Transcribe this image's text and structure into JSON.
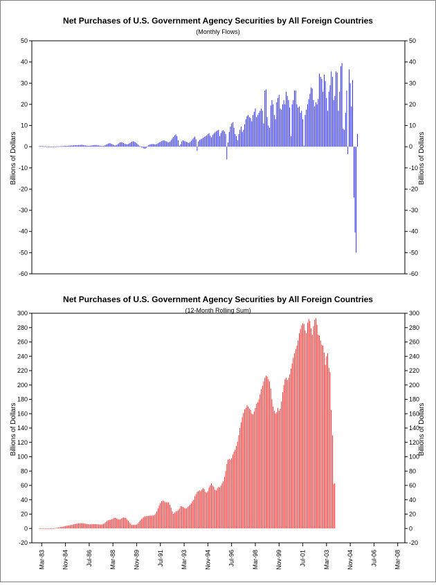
{
  "chart_data": [
    {
      "type": "bar",
      "title": "Net Purchases of U.S. Government Agency Securities by All Foreign Countries",
      "subtitle": "(Monthly Flows)",
      "ylabel": "Billions of Dollars",
      "ylabel_right": "Billions of Dollars",
      "ylim": [
        -60,
        50
      ],
      "yticks": [
        "50",
        "40",
        "30",
        "20",
        "10",
        "0",
        "-10",
        "-20",
        "-30",
        "-40",
        "-50",
        "-60"
      ],
      "x_start": "Jan-83",
      "frequency": "monthly",
      "color": "#0000ff",
      "grid": false,
      "values": [
        0.3,
        0.3,
        0.3,
        0.3,
        0.2,
        0.2,
        0.1,
        0.1,
        0.0,
        0.0,
        0.0,
        0.0,
        0.0,
        0.1,
        0.1,
        0.2,
        0.2,
        0.2,
        0.3,
        0.3,
        0.3,
        0.4,
        0.4,
        0.4,
        0.4,
        0.5,
        0.5,
        0.6,
        0.6,
        0.7,
        0.7,
        0.7,
        0.7,
        0.8,
        0.8,
        0.9,
        0.9,
        0.8,
        0.7,
        0.6,
        0.5,
        0.4,
        0.4,
        0.5,
        0.6,
        0.7,
        0.8,
        0.8,
        0.8,
        0.7,
        0.6,
        0.5,
        0.4,
        0.3,
        0.4,
        0.6,
        0.9,
        1.2,
        1.5,
        1.7,
        1.6,
        1.3,
        1.0,
        0.7,
        0.6,
        0.8,
        1.2,
        1.6,
        2.0,
        2.2,
        2.0,
        1.7,
        1.4,
        1.2,
        1.1,
        1.3,
        1.6,
        2.0,
        2.4,
        2.6,
        2.4,
        2.1,
        1.6,
        1.1,
        0.6,
        0.2,
        -0.2,
        -0.5,
        -0.8,
        -1.0,
        -0.7,
        0.2,
        0.8,
        1.0,
        1.2,
        1.3,
        1.3,
        1.2,
        1.1,
        1.3,
        1.6,
        2.0,
        2.3,
        2.6,
        2.9,
        3.0,
        2.8,
        2.5,
        2.2,
        2.0,
        2.4,
        3.1,
        3.9,
        4.6,
        5.3,
        5.8,
        5.0,
        3.0,
        0.5,
        1.2,
        2.5,
        3.0,
        2.8,
        2.5,
        2.3,
        2.0,
        1.8,
        2.2,
        2.8,
        3.5,
        4.2,
        4.8,
        3.5,
        -2.0,
        2.5,
        3.2,
        3.5,
        3.8,
        4.2,
        4.6,
        5.0,
        5.4,
        5.9,
        6.4,
        5.2,
        4.5,
        5.5,
        6.2,
        6.8,
        7.2,
        7.6,
        8.0,
        5.0,
        6.5,
        7.5,
        7.8,
        7.2,
        6.0,
        -6.0,
        2.0,
        7.0,
        9.5,
        11.0,
        11.5,
        9.0,
        6.0,
        5.0,
        3.0,
        6.0,
        8.0,
        9.5,
        7.0,
        8.0,
        10.5,
        13.0,
        14.5,
        15.0,
        14.0,
        13.5,
        12.0,
        15.0,
        16.5,
        18.0,
        14.0,
        15.0,
        16.0,
        17.0,
        18.0,
        17.0,
        11.0,
        26.5,
        27.0,
        14.0,
        10.0,
        9.0,
        19.5,
        22.0,
        20.0,
        15.0,
        13.0,
        21.0,
        23.0,
        24.5,
        18.0,
        17.5,
        20.0,
        22.0,
        20.0,
        26.0,
        24.0,
        22.0,
        18.5,
        5.0,
        20.0,
        22.0,
        26.5,
        26.5,
        20.0,
        18.5,
        19.0,
        16.0,
        17.0,
        13.0,
        0.5,
        15.0,
        17.5,
        20.0,
        22.5,
        25.0,
        28.0,
        27.5,
        22.0,
        19.0,
        21.0,
        20.0,
        22.5,
        34.5,
        33.0,
        32.0,
        26.0,
        34.0,
        31.0,
        23.0,
        17.0,
        26.0,
        29.0,
        35.5,
        33.0,
        22.0,
        24.0,
        35.5,
        35.0,
        17.0,
        26.0,
        38.0,
        39.5,
        8.5,
        8.0,
        16.0,
        26.5,
        -3.5,
        36.5,
        30.0,
        19.0,
        31.5,
        -24.0,
        -40.5,
        -50.0,
        6.0
      ]
    },
    {
      "type": "bar",
      "title": "Net Purchases of U.S. Government Agency Securities by All Foreign Countries",
      "subtitle": "(12-Month Rolling Sum)",
      "ylabel": "Billions of Dollars",
      "ylabel_right": "Billions of Dollars",
      "ylim": [
        -20,
        300
      ],
      "yticks": [
        "300",
        "280",
        "260",
        "240",
        "220",
        "200",
        "180",
        "160",
        "140",
        "120",
        "100",
        "80",
        "60",
        "40",
        "20",
        "0",
        "-20"
      ],
      "x_start": "Jan-83",
      "frequency": "monthly",
      "categories_shown": [
        "Mar-83",
        "Nov-84",
        "Jul-86",
        "Mar-88",
        "Nov-89",
        "Jul-91",
        "Mar-93",
        "Nov-94",
        "Jul-96",
        "Mar-98",
        "Nov-99",
        "Jul-01",
        "Mar-03",
        "Nov-04",
        "Jul-06",
        "Mar-08"
      ],
      "color": "#ff0000",
      "grid": false,
      "values": [
        0.0,
        0.0,
        0.0,
        0.0,
        0.0,
        0.0,
        0.0,
        0.0,
        0.0,
        0.0,
        0.0,
        0.0,
        0.2,
        0.5,
        0.8,
        1.0,
        1.3,
        1.6,
        2.0,
        2.3,
        2.6,
        3.0,
        3.4,
        3.8,
        4.0,
        4.3,
        4.6,
        5.0,
        5.4,
        5.8,
        6.2,
        6.5,
        6.8,
        7.0,
        7.2,
        7.4,
        7.5,
        7.2,
        6.9,
        6.6,
        6.3,
        6.0,
        5.8,
        5.8,
        5.9,
        6.0,
        6.0,
        6.0,
        6.0,
        5.8,
        5.6,
        5.5,
        5.5,
        5.7,
        6.5,
        7.5,
        9.0,
        10.5,
        11.5,
        12.0,
        12.3,
        12.8,
        13.6,
        14.8,
        14.9,
        14.2,
        13.2,
        12.4,
        12.6,
        13.7,
        14.9,
        15.4,
        15.0,
        14.5,
        12.5,
        10.5,
        8.5,
        6.5,
        5.0,
        5.0,
        5.0,
        5.0,
        5.5,
        7.0,
        9.0,
        11.0,
        13.0,
        14.5,
        16.0,
        17.0,
        17.0,
        17.5,
        17.5,
        18.0,
        18.0,
        18.0,
        18.0,
        19.0,
        21.0,
        24.0,
        28.0,
        32.0,
        35.5,
        38.0,
        39.0,
        38.0,
        36.5,
        36.5,
        36.5,
        36.5,
        33.0,
        29.0,
        24.0,
        20.5,
        22.0,
        24.0,
        24.0,
        25.5,
        27.5,
        31.0,
        31.0,
        30.0,
        29.0,
        28.0,
        28.0,
        30.0,
        31.0,
        33.0,
        35.0,
        38.0,
        40.0,
        45.0,
        48.0,
        51.0,
        52.0,
        53.0,
        52.0,
        54.0,
        56.0,
        55.0,
        51.0,
        50.0,
        52.0,
        57.0,
        60.0,
        63.0,
        60.0,
        58.0,
        54.0,
        53.0,
        56.0,
        58.0,
        57.0,
        60.0,
        63.0,
        66.0,
        72.0,
        80.0,
        90.0,
        96.0,
        97.0,
        96.0,
        98.0,
        103.0,
        107.0,
        110.0,
        115.0,
        121.0,
        130.0,
        140.0,
        148.0,
        155.0,
        161.0,
        166.0,
        168.0,
        172.0,
        170.0,
        167.0,
        165.0,
        160.0,
        159.0,
        163.0,
        168.0,
        174.0,
        176.0,
        180.0,
        187.0,
        194.0,
        199.0,
        205.0,
        210.0,
        213.0,
        212.0,
        208.0,
        205.0,
        195.0,
        180.0,
        170.0,
        164.0,
        160.0,
        162.0,
        168.0,
        164.0,
        167.0,
        177.0,
        190.0,
        200.0,
        208.0,
        210.0,
        207.0,
        210.0,
        215.0,
        223.0,
        230.0,
        238.0,
        244.0,
        250.0,
        255.0,
        262.0,
        272.0,
        278.0,
        283.0,
        286.0,
        285.0,
        276.0,
        272.0,
        287.0,
        292.0,
        289.0,
        279.0,
        270.0,
        282.0,
        291.0,
        293.0,
        284.0,
        270.0,
        269.0,
        262.0,
        256.0,
        255.0,
        245.0,
        228.0,
        240.0,
        244.0,
        224.0,
        218.0,
        165.0,
        130.0,
        62.0,
        63.0
      ]
    }
  ]
}
